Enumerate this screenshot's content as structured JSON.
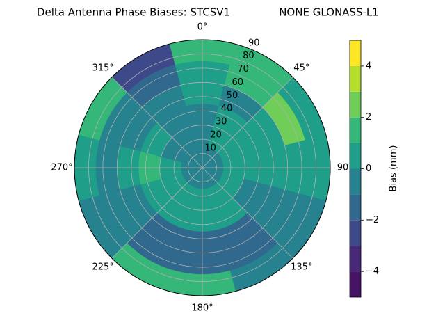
{
  "chart_data": {
    "type": "polar-contour",
    "title": "Delta Antenna Phase Biases: STCSV1",
    "subtitle": "NONE GLONASS-L1",
    "theta": [
      0,
      30,
      60,
      90,
      120,
      150,
      180,
      210,
      240,
      270,
      300,
      330
    ],
    "r": [
      0,
      15,
      30,
      45,
      60,
      75
    ],
    "z": [
      [
        -0.5,
        -0.5,
        -0.5,
        -0.5,
        -0.5,
        -0.5,
        -0.5,
        -0.5,
        -0.5,
        -0.5,
        -0.5,
        -0.5
      ],
      [
        -0.5,
        0.5,
        0.5,
        0.5,
        0.5,
        0.5,
        0.5,
        0.5,
        0.5,
        0.5,
        -0.5,
        -0.5
      ],
      [
        -0.5,
        0.5,
        0.5,
        0.5,
        -0.5,
        0.5,
        0.5,
        0.5,
        0.5,
        1.5,
        0.5,
        -0.5
      ],
      [
        0.5,
        -0.5,
        0.5,
        0.5,
        -0.5,
        -1.5,
        -1.5,
        -1.5,
        -0.5,
        0.5,
        -0.5,
        -0.5
      ],
      [
        0.5,
        1.5,
        2.5,
        0.5,
        -0.5,
        -1.5,
        -1.5,
        -1.5,
        -0.5,
        -0.5,
        -0.5,
        -1.5
      ],
      [
        1.5,
        1.5,
        0.5,
        0.5,
        -0.5,
        -0.5,
        1.5,
        1.5,
        -0.5,
        0.5,
        1.5,
        -2.5
      ]
    ],
    "rlim": [
      0,
      90
    ],
    "rticks": [
      10,
      20,
      30,
      40,
      50,
      60,
      70,
      80,
      90
    ],
    "thetaticks": [
      {
        "value": 0,
        "label": "0°"
      },
      {
        "value": 45,
        "label": "45°"
      },
      {
        "value": 90,
        "label": "90"
      },
      {
        "value": 135,
        "label": "135°"
      },
      {
        "value": 180,
        "label": "180°"
      },
      {
        "value": 225,
        "label": "225°"
      },
      {
        "value": 270,
        "label": "270°"
      },
      {
        "value": 315,
        "label": "315°"
      }
    ],
    "grid": true,
    "levels": [
      -5,
      -4,
      -3,
      -2,
      -1,
      0,
      1,
      2,
      3,
      4,
      5
    ],
    "colors": [
      "#471365",
      "#482878",
      "#3e4989",
      "#31688e",
      "#26828e",
      "#1f9e89",
      "#35b779",
      "#6ece58",
      "#b5de2b",
      "#fde725"
    ],
    "colorbar_label": "Bias (mm)",
    "colorbar_ticks": [
      {
        "value": -4,
        "label": "−4"
      },
      {
        "value": -2,
        "label": "−2"
      },
      0,
      2,
      4
    ]
  }
}
